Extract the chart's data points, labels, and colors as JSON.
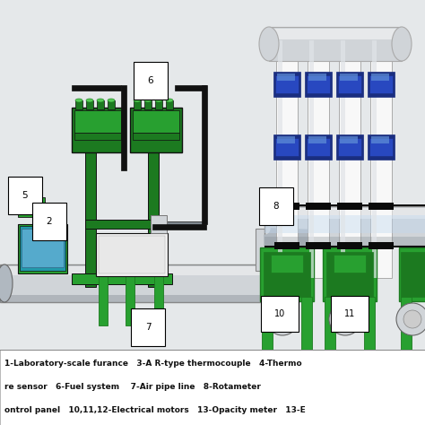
{
  "bg_diagram": "#e8e8e8",
  "bg_caption": "#ffffff",
  "green_dark": "#1c7a20",
  "green_mid": "#28a030",
  "green_light": "#55cc55",
  "gray_pipe": "#b0b8c0",
  "gray_dark": "#808890",
  "gray_light": "#d0d4d8",
  "blue_dark": "#1a2e80",
  "blue_mid": "#2848c0",
  "blue_light": "#6090d8",
  "black": "#111111",
  "white": "#f8f8f8",
  "caption_lines": [
    "1-Laboratory-scale furance   3-A R-type thermocouple   4-Thermo",
    "re sensor   6-Fuel system    7-Air pipe line   8-Rotameter",
    "ontrol panel   10,11,12-Electrical motors   13-Opacity meter   13-E"
  ]
}
